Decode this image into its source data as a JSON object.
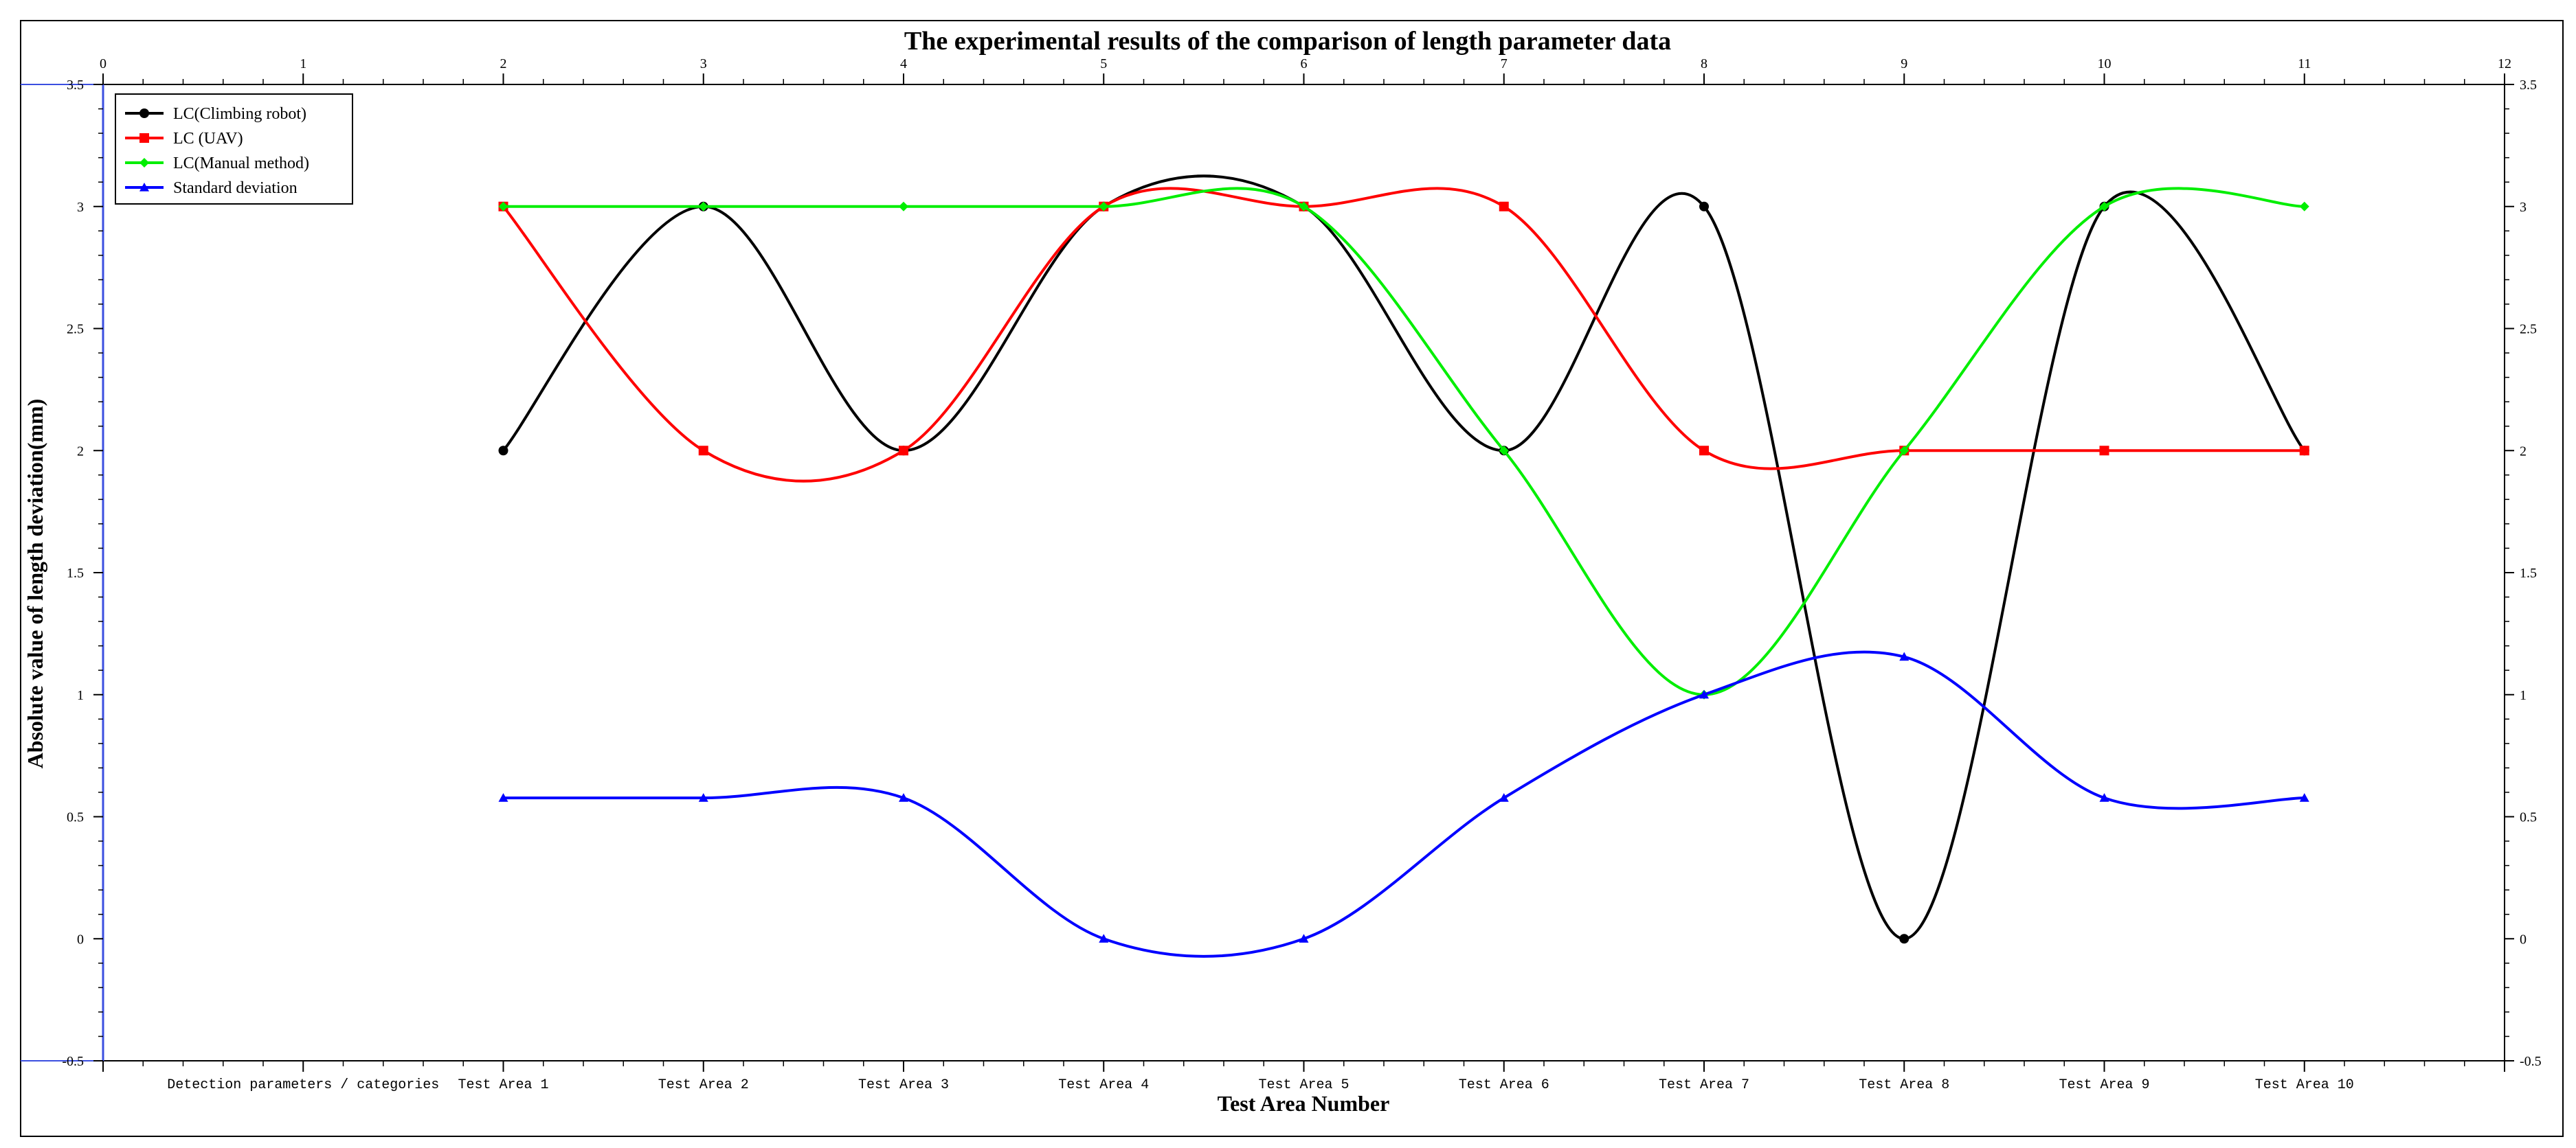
{
  "chart_data": {
    "type": "line",
    "title": "The experimental results of the comparison of length parameter data",
    "xlabel": "Test Area Number",
    "ylabel": "Absolute value of length deviation(mm)",
    "xlim": [
      0,
      12
    ],
    "ylim": [
      -0.5,
      3.5
    ],
    "x_ticks": [
      0,
      1,
      2,
      3,
      4,
      5,
      6,
      7,
      8,
      9,
      10,
      11,
      12
    ],
    "y_ticks": [
      -0.5,
      0,
      0.5,
      1,
      1.5,
      2,
      2.5,
      3,
      3.5
    ],
    "y_tick_labels": [
      "-0.5",
      "0",
      "0.5",
      "1",
      "1.5",
      "2",
      "2.5",
      "3",
      "3.5"
    ],
    "category_labels": [
      {
        "x": 1,
        "label": "Detection parameters / categories"
      },
      {
        "x": 2,
        "label": "Test Area 1"
      },
      {
        "x": 3,
        "label": "Test Area 2"
      },
      {
        "x": 4,
        "label": "Test Area 3"
      },
      {
        "x": 5,
        "label": "Test Area 4"
      },
      {
        "x": 6,
        "label": "Test Area 5"
      },
      {
        "x": 7,
        "label": "Test Area 6"
      },
      {
        "x": 8,
        "label": "Test Area 7"
      },
      {
        "x": 9,
        "label": "Test Area 8"
      },
      {
        "x": 10,
        "label": "Test Area 9"
      },
      {
        "x": 11,
        "label": "Test Area 10"
      }
    ],
    "x": [
      2,
      3,
      4,
      5,
      6,
      7,
      8,
      9,
      10,
      11
    ],
    "series": [
      {
        "name": "LC(Climbing robot)",
        "color": "#000000",
        "marker": "circle",
        "values": [
          2,
          3,
          2,
          3,
          3,
          2,
          3,
          0,
          3,
          2
        ]
      },
      {
        "name": "LC (UAV)",
        "color": "#ff0000",
        "marker": "square",
        "values": [
          3,
          2,
          2,
          3,
          3,
          3,
          2,
          2,
          2,
          2
        ]
      },
      {
        "name": "LC(Manual method)",
        "color": "#00ee00",
        "marker": "diamond",
        "values": [
          3,
          3,
          3,
          3,
          3,
          2,
          1,
          2,
          3,
          3
        ]
      },
      {
        "name": "Standard deviation",
        "color": "#0000ff",
        "marker": "triangle",
        "values": [
          0.577,
          0.577,
          0.577,
          0,
          0,
          0.577,
          1,
          1.155,
          0.577,
          0.577
        ]
      }
    ],
    "legend_position": "top-left",
    "grid": false
  }
}
